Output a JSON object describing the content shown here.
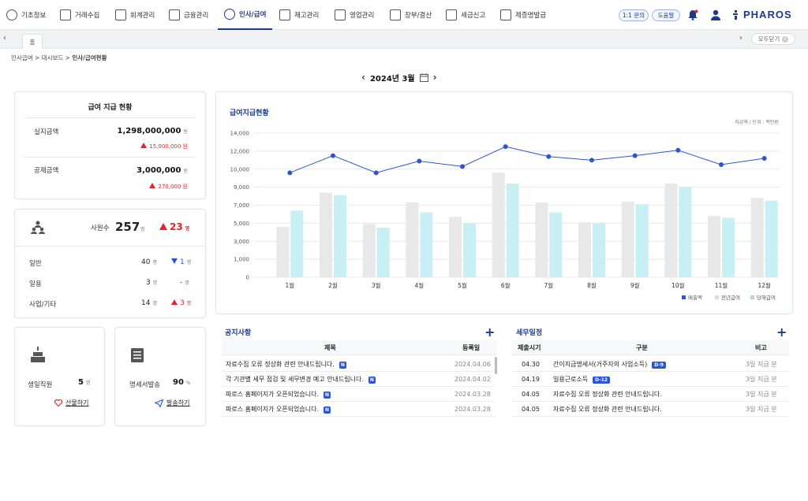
{
  "nav": {
    "items": [
      {
        "label": "기초정보",
        "icon": "gear-icon"
      },
      {
        "label": "거래수집",
        "icon": "collect-icon"
      },
      {
        "label": "회계관리",
        "icon": "ledger-icon"
      },
      {
        "label": "금융관리",
        "icon": "bank-icon"
      },
      {
        "label": "인사/급여",
        "icon": "people-icon"
      },
      {
        "label": "재고관리",
        "icon": "box-icon"
      },
      {
        "label": "영업관리",
        "icon": "briefcase-icon"
      },
      {
        "label": "장부/결산",
        "icon": "calculator-icon"
      },
      {
        "label": "세금신고",
        "icon": "tax-icon"
      },
      {
        "label": "제증명발급",
        "icon": "certificate-icon"
      }
    ],
    "active_index": 4,
    "inquiry_label": "1:1 문의",
    "help_label": "도움말",
    "brand": "PHAROS"
  },
  "tabs": {
    "home_label": "홈",
    "close_all_label": "모두닫기"
  },
  "breadcrumb": {
    "level1": "인사급여",
    "level2": "대시보드",
    "current": "인사/급여현황"
  },
  "period": {
    "label": "2024년 3월"
  },
  "pay_summary": {
    "title": "급여 지급 현황",
    "net_label": "실지급액",
    "net_value": "1,298,000,000",
    "net_unit": "원",
    "net_change": "15,000,000 원",
    "deduction_label": "공제금액",
    "deduction_value": "3,000,000",
    "deduction_unit": "원",
    "deduction_change": "270,000 원"
  },
  "employees": {
    "total_label": "사원수",
    "total_value": "257",
    "total_unit": "명",
    "total_change": "23",
    "total_change_unit": "명",
    "rows": [
      {
        "label": "일반",
        "value": "40",
        "unit": "명",
        "change": "1",
        "change_unit": "명",
        "dir": "down"
      },
      {
        "label": "일용",
        "value": "3",
        "unit": "명",
        "change": "-",
        "change_unit": "명",
        "dir": "none"
      },
      {
        "label": "사업/기타",
        "value": "14",
        "unit": "명",
        "change": "3",
        "change_unit": "명",
        "dir": "up"
      }
    ]
  },
  "birthday": {
    "label": "생일직원",
    "value": "5",
    "unit": "명",
    "action": "선물하기"
  },
  "payslip": {
    "label": "명세서발송",
    "value": "90",
    "unit": "%",
    "action": "발송하기"
  },
  "chart_data": {
    "type": "bar",
    "title": "급여지급현황",
    "unit_note": "지급액 / 단위 : 백만원",
    "categories": [
      "1월",
      "2월",
      "3월",
      "4월",
      "5월",
      "6월",
      "7월",
      "8월",
      "9월",
      "10월",
      "11월",
      "12월"
    ],
    "y_ticks": [
      "0",
      "1,000",
      "3,000",
      "5,000",
      "7,000",
      "9,000",
      "10,000",
      "12,000",
      "14,000"
    ],
    "series": [
      {
        "name": "전년급여",
        "kind": "bar",
        "color": "#e8e8e8",
        "values": [
          4600,
          8400,
          4900,
          7300,
          5700,
          9800,
          7300,
          5100,
          7400,
          9200,
          5800,
          7800
        ]
      },
      {
        "name": "당해급여",
        "kind": "bar",
        "color": "#c8eff3",
        "values": [
          6400,
          8100,
          4500,
          6200,
          5000,
          9200,
          6200,
          5000,
          7100,
          9000,
          5600,
          7500
        ]
      },
      {
        "name": "매출액",
        "kind": "line",
        "color": "#2f55cc",
        "values": [
          9800,
          11500,
          9800,
          10900,
          10300,
          12500,
          11400,
          11000,
          11500,
          12100,
          10500,
          11200
        ]
      }
    ],
    "legend_order": [
      "매출액",
      "전년급여",
      "당해급여"
    ],
    "legend_position": "bottom-right"
  },
  "notices": {
    "title": "공지사항",
    "col_title": "제목",
    "col_date": "등록일",
    "rows": [
      {
        "title": "자료수집 오류 정상화 관련 안내드립니다.",
        "date": "2024.04.06",
        "badge": "N"
      },
      {
        "title": "각 기관별 세무 점검 및 세무변경 예고 안내드립니다.",
        "date": "2024.04.02",
        "badge": "N"
      },
      {
        "title": "파로스 홈페이지가 오픈되었습니다.",
        "date": "2024.03.28",
        "badge": "N"
      },
      {
        "title": "파로스 홈페이지가 오픈되었습니다.",
        "date": "2024.03.28",
        "badge": "N"
      }
    ]
  },
  "tax_schedule": {
    "title": "세무일정",
    "col_date": "제출시기",
    "col_type": "구분",
    "col_note": "비고",
    "rows": [
      {
        "date": "04.30",
        "type": "간이지급명세서(거주자의 사업소득)",
        "badge": "D-9",
        "note": "3일 지급 분"
      },
      {
        "date": "04.19",
        "type": "일용근로소득",
        "badge": "D-12",
        "note": "3일 지급 분"
      },
      {
        "date": "04.05",
        "type": "자료수집 오류 정상화 관련 안내드립니다.",
        "badge": "",
        "note": "3일 지급 분"
      },
      {
        "date": "04.05",
        "type": "자료수집 오류 정상화 관련 안내드립니다.",
        "badge": "",
        "note": "3일 지급 분"
      }
    ]
  }
}
